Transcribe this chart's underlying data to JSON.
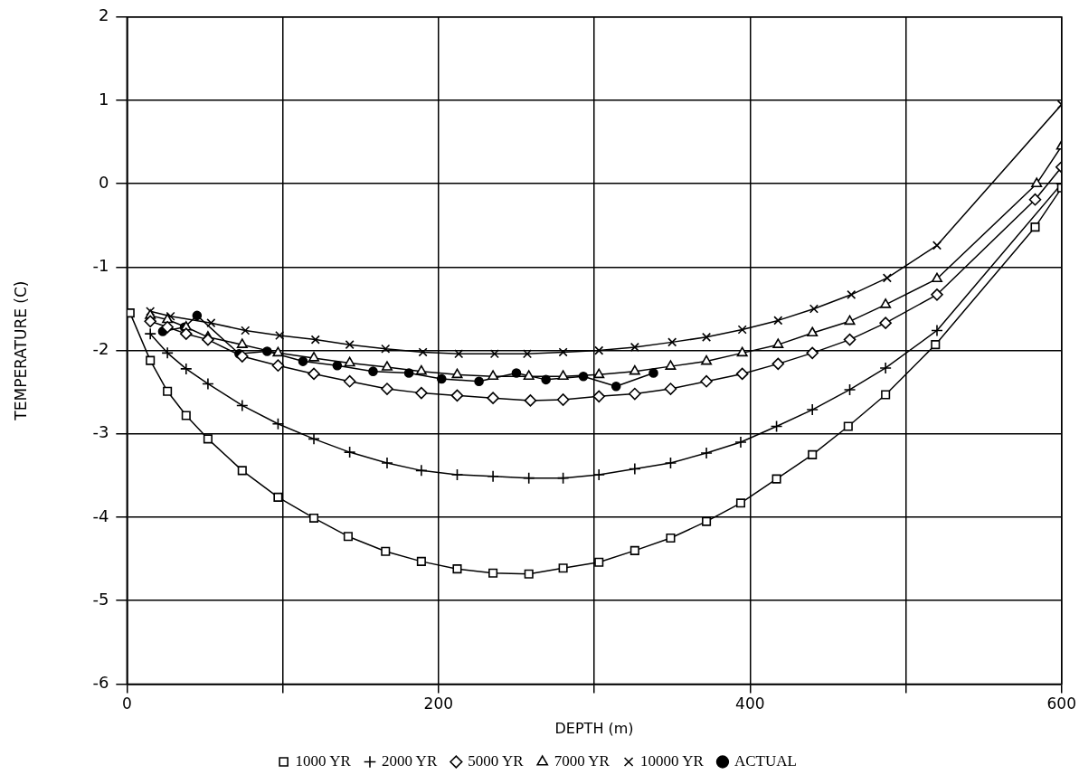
{
  "chart_data": {
    "type": "line",
    "xlabel": "DEPTH (m)",
    "ylabel": "TEMPERATURE (C)",
    "xlim": [
      0,
      600
    ],
    "xticks": [
      0,
      {
        "value": 100,
        "label": null
      },
      200,
      {
        "value": 300,
        "label": null
      },
      400,
      {
        "value": 500,
        "label": null
      },
      600
    ],
    "ylim": [
      -6,
      2
    ],
    "yticks": [
      -6,
      -5,
      -4,
      -3,
      -2,
      -1,
      0,
      1,
      2
    ],
    "grid": true,
    "legend": "bottom",
    "line_style": "solid",
    "series": [
      {
        "name": "1000 YR",
        "color": "#000000",
        "marker": "square",
        "x": [
          2,
          15,
          26,
          38,
          52,
          74,
          97,
          120,
          142,
          166,
          189,
          212,
          235,
          258,
          280,
          303,
          326,
          349,
          372,
          394,
          417,
          440,
          463,
          487,
          519,
          583,
          600
        ],
        "values": [
          -1.55,
          -2.12,
          -2.49,
          -2.78,
          -3.06,
          -3.44,
          -3.76,
          -4.01,
          -4.23,
          -4.41,
          -4.53,
          -4.62,
          -4.67,
          -4.68,
          -4.61,
          -4.54,
          -4.4,
          -4.25,
          -4.05,
          -3.83,
          -3.54,
          -3.25,
          -2.91,
          -2.53,
          -1.93,
          -0.52,
          -0.05
        ]
      },
      {
        "name": "2000 YR",
        "color": "#000000",
        "marker": "plus",
        "x": [
          15,
          26,
          38,
          52,
          74,
          97,
          120,
          143,
          167,
          189,
          212,
          235,
          258,
          280,
          303,
          326,
          349,
          372,
          394,
          417,
          440,
          464,
          487,
          520,
          600
        ],
        "values": [
          -1.8,
          -2.03,
          -2.22,
          -2.4,
          -2.66,
          -2.88,
          -3.06,
          -3.22,
          -3.35,
          -3.44,
          -3.49,
          -3.51,
          -3.53,
          -3.53,
          -3.49,
          -3.42,
          -3.35,
          -3.23,
          -3.1,
          -2.91,
          -2.71,
          -2.47,
          -2.21,
          -1.76,
          0
        ]
      },
      {
        "name": "5000 YR",
        "color": "#000000",
        "marker": "diamond",
        "x": [
          15,
          26,
          38,
          52,
          74,
          97,
          120,
          143,
          167,
          189,
          212,
          235,
          259,
          280,
          303,
          326,
          349,
          372,
          395,
          418,
          440,
          464,
          487,
          520,
          583,
          600
        ],
        "values": [
          -1.65,
          -1.72,
          -1.8,
          -1.87,
          -2.07,
          -2.18,
          -2.28,
          -2.37,
          -2.46,
          -2.51,
          -2.54,
          -2.57,
          -2.6,
          -2.59,
          -2.55,
          -2.52,
          -2.46,
          -2.37,
          -2.28,
          -2.16,
          -2.03,
          -1.87,
          -1.67,
          -1.33,
          -0.19,
          0.2
        ]
      },
      {
        "name": "7000 YR",
        "color": "#000000",
        "marker": "triangle",
        "x": [
          15,
          26,
          38,
          52,
          74,
          97,
          120,
          143,
          167,
          189,
          212,
          235,
          258,
          280,
          303,
          326,
          349,
          372,
          395,
          418,
          440,
          464,
          487,
          520,
          584,
          600
        ],
        "values": [
          -1.58,
          -1.63,
          -1.72,
          -1.84,
          -1.93,
          -2.03,
          -2.09,
          -2.15,
          -2.2,
          -2.25,
          -2.29,
          -2.31,
          -2.31,
          -2.31,
          -2.29,
          -2.25,
          -2.19,
          -2.13,
          -2.03,
          -1.93,
          -1.79,
          -1.65,
          -1.45,
          -1.14,
          0,
          0.45
        ]
      },
      {
        "name": "10000 YR",
        "color": "#000000",
        "marker": "cross",
        "x": [
          15,
          28,
          54,
          76,
          98,
          121,
          143,
          166,
          190,
          213,
          236,
          257,
          280,
          303,
          326,
          350,
          372,
          395,
          418,
          441,
          465,
          488,
          520,
          600
        ],
        "values": [
          -1.53,
          -1.59,
          -1.67,
          -1.76,
          -1.82,
          -1.87,
          -1.93,
          -1.98,
          -2.02,
          -2.04,
          -2.04,
          -2.04,
          -2.02,
          -2,
          -1.96,
          -1.9,
          -1.84,
          -1.75,
          -1.64,
          -1.5,
          -1.33,
          -1.13,
          -0.74,
          0.95
        ]
      },
      {
        "name": "ACTUAL",
        "color": "#000000",
        "marker": "circle",
        "x": [
          23,
          37,
          45,
          72,
          90,
          113,
          135,
          158,
          181,
          202,
          226,
          250,
          269,
          293,
          314,
          338
        ],
        "values": [
          -1.77,
          -1.72,
          -1.58,
          -2.04,
          -2.01,
          -2.13,
          -2.18,
          -2.25,
          -2.27,
          -2.34,
          -2.37,
          -2.27,
          -2.35,
          -2.31,
          -2.43,
          -2.27
        ]
      }
    ]
  }
}
